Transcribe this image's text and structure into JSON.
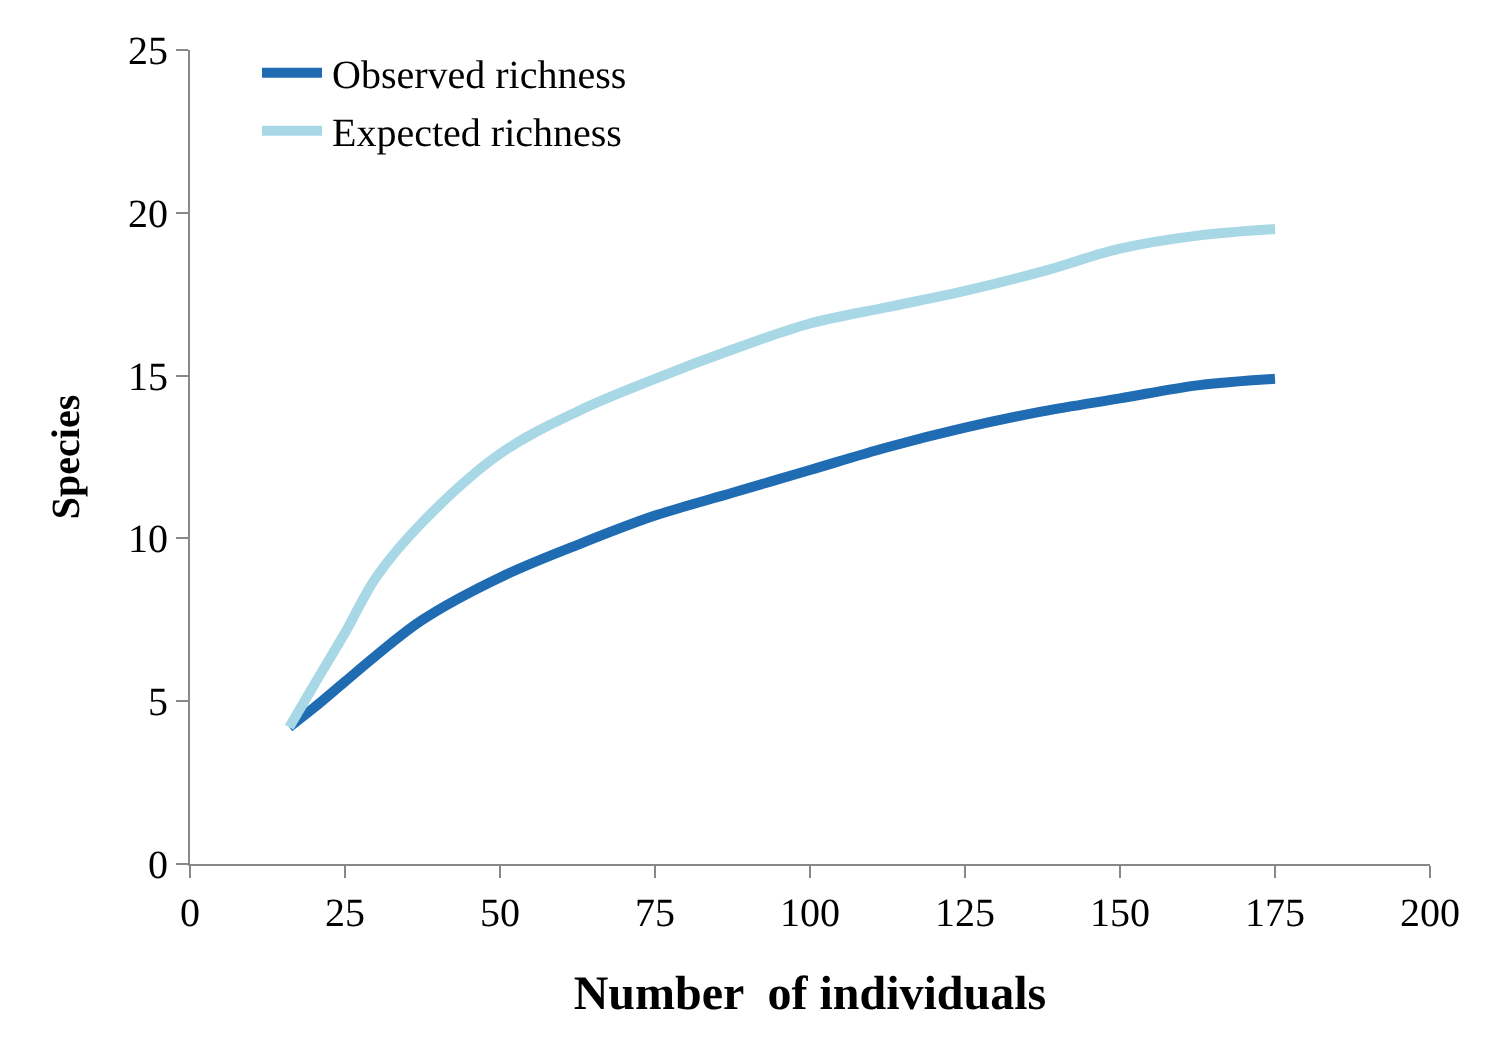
{
  "chart_data": {
    "type": "line",
    "xlabel": "Number  of individuals",
    "ylabel": "Species",
    "xlim": [
      0,
      200
    ],
    "xticks": [
      0,
      25,
      50,
      75,
      100,
      125,
      150,
      175,
      200
    ],
    "ylim": [
      0,
      25
    ],
    "yticks": [
      0,
      5,
      10,
      15,
      20,
      25
    ],
    "grid": false,
    "legend": "top left",
    "marker": "none",
    "line_style": "solid",
    "series": [
      {
        "name": "Observed richness",
        "color": "#1f6cb3",
        "x": [
          16,
          20,
          25,
          30,
          37.5,
          50,
          62.5,
          75,
          87.5,
          100,
          112.5,
          125,
          137.5,
          150,
          162.5,
          175
        ],
        "values": [
          4.2,
          4.8,
          5.6,
          6.4,
          7.5,
          8.8,
          9.8,
          10.7,
          11.4,
          12.1,
          12.8,
          13.4,
          13.9,
          14.3,
          14.7,
          14.9
        ]
      },
      {
        "name": "Expected richness",
        "color": "#a8d8e6",
        "x": [
          16,
          20,
          25,
          30,
          37.5,
          50,
          62.5,
          75,
          87.5,
          100,
          112.5,
          125,
          137.5,
          150,
          162.5,
          175
        ],
        "values": [
          4.2,
          5.5,
          7.1,
          8.8,
          10.5,
          12.6,
          13.9,
          14.9,
          15.8,
          16.6,
          17.1,
          17.6,
          18.2,
          18.9,
          19.3,
          19.5
        ]
      }
    ]
  }
}
